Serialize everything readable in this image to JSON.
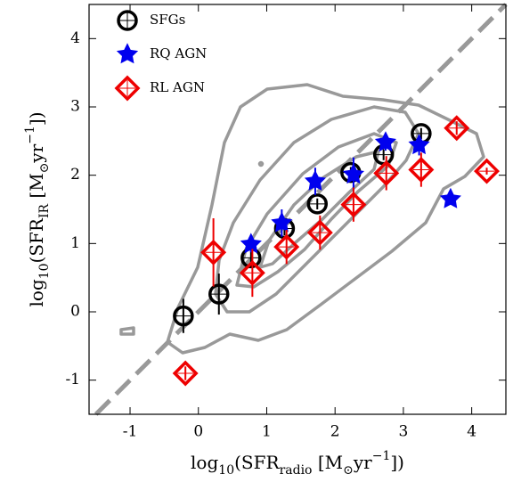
{
  "chart_data": {
    "type": "scatter",
    "xlabel": [
      {
        "text": "log"
      },
      {
        "text": "10",
        "shift": "sub"
      },
      {
        "text": "(SFR"
      },
      {
        "text": "radio",
        "shift": "sub"
      },
      {
        "text": " [M"
      },
      {
        "text": "⊙",
        "shift": "sub"
      },
      {
        "text": "yr"
      },
      {
        "text": "−1",
        "shift": "super"
      },
      {
        "text": "])"
      }
    ],
    "ylabel": [
      {
        "text": "log"
      },
      {
        "text": "10",
        "shift": "sub"
      },
      {
        "text": "(SFR"
      },
      {
        "text": "IR",
        "shift": "sub"
      },
      {
        "text": " [M"
      },
      {
        "text": "⊙",
        "shift": "sub"
      },
      {
        "text": "yr"
      },
      {
        "text": "−1",
        "shift": "super"
      },
      {
        "text": "])"
      }
    ],
    "xlim": [
      -1.6,
      4.5
    ],
    "ylim": [
      -1.5,
      4.5
    ],
    "xticks": [
      -1,
      0,
      1,
      2,
      3,
      4
    ],
    "yticks": [
      -1,
      0,
      1,
      2,
      3,
      4
    ],
    "identity_line": true,
    "legend": "upper left",
    "series": [
      {
        "name": "SFGs",
        "color": "#000000",
        "marker": "circle",
        "x": [
          -0.22,
          0.3,
          0.77,
          1.26,
          1.74,
          2.23,
          2.71,
          3.26
        ],
        "values": [
          -0.06,
          0.26,
          0.79,
          1.22,
          1.58,
          2.04,
          2.3,
          2.61
        ],
        "yerr": [
          0.25,
          0.3,
          0.1,
          0.1,
          0.08,
          0.08,
          0.08,
          0.08
        ]
      },
      {
        "name": "RQ AGN",
        "color": "#0000ee",
        "marker": "star",
        "x": [
          0.77,
          1.22,
          1.71,
          2.27,
          2.74,
          3.23,
          3.69
        ],
        "values": [
          0.99,
          1.3,
          1.91,
          2.01,
          2.48,
          2.44,
          1.65
        ],
        "yerr": [
          0.12,
          0.2,
          0.2,
          0.25,
          0.12,
          0.15,
          0.05
        ]
      },
      {
        "name": "RL AGN",
        "color": "#ee0000",
        "marker": "diamond",
        "x": [
          -0.19,
          0.22,
          0.79,
          1.29,
          1.78,
          2.27,
          2.75,
          3.26,
          3.78,
          4.22
        ],
        "values": [
          -0.9,
          0.87,
          0.57,
          0.95,
          1.16,
          1.57,
          2.03,
          2.08,
          2.69,
          2.06
        ],
        "yerr": [
          0.1,
          0.5,
          0.35,
          0.25,
          0.25,
          0.25,
          0.25,
          0.25,
          0.1,
          0.05
        ]
      }
    ]
  }
}
